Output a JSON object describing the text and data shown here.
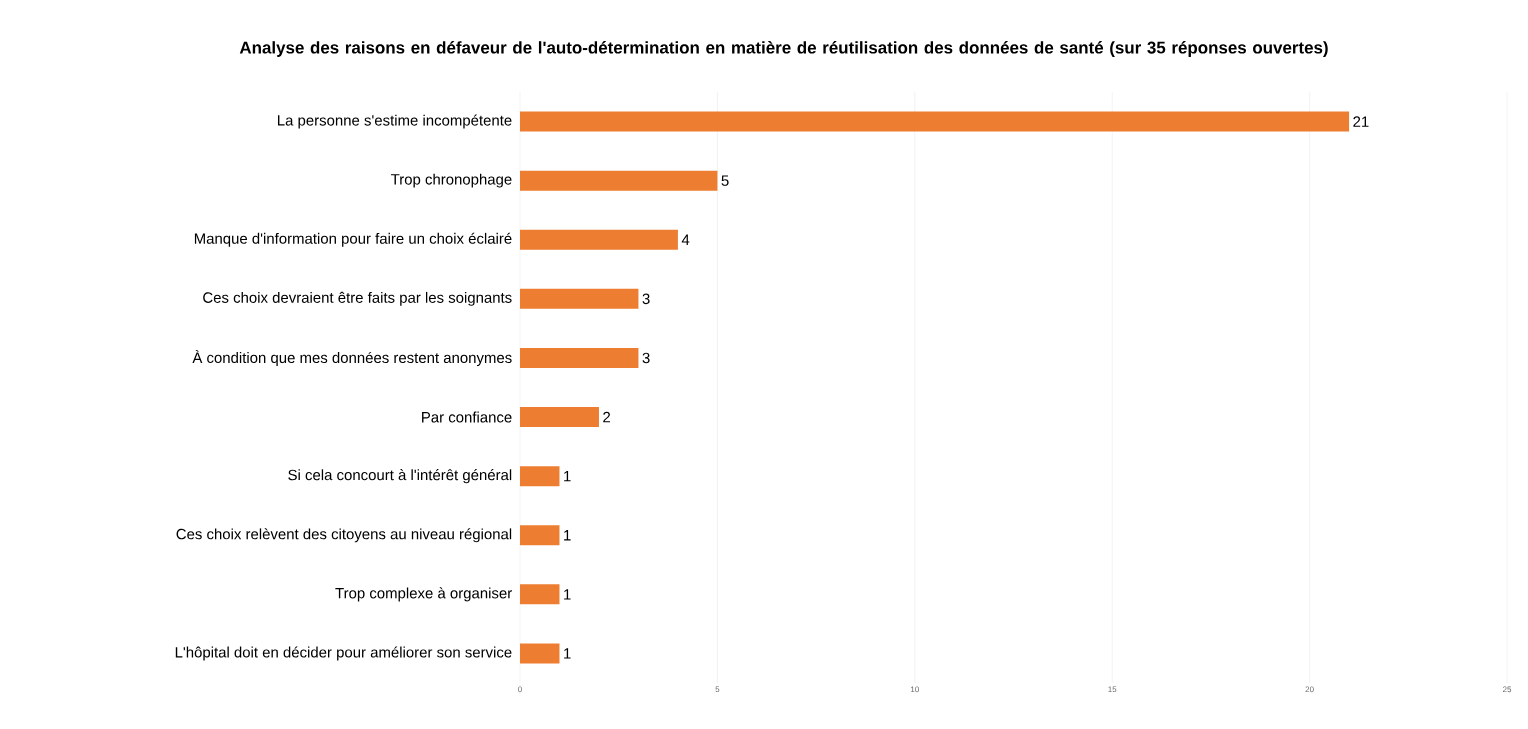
{
  "chart_data": {
    "type": "bar",
    "orientation": "horizontal",
    "title": "Analyse des raisons en défaveur de l'auto-détermination en matière de réutilisation des données de santé (sur 35 réponses ouvertes)",
    "categories": [
      "La personne s'estime incompétente",
      "Trop chronophage",
      "Manque d'information pour faire un choix éclairé",
      "Ces choix devraient être faits par les soignants",
      "À condition que mes données restent anonymes",
      "Par confiance",
      "Si cela concourt à l'intérêt général",
      "Ces choix relèvent des citoyens au niveau régional",
      "Trop complexe à organiser",
      "L'hôpital doit en décider pour améliorer son service"
    ],
    "values": [
      21,
      5,
      4,
      3,
      3,
      2,
      1,
      1,
      1,
      1
    ],
    "color": "#ed7d31",
    "xlim": [
      0,
      25
    ],
    "xticks": [
      0,
      5,
      10,
      15,
      20,
      25
    ],
    "grid": "x",
    "data_labels": true
  }
}
